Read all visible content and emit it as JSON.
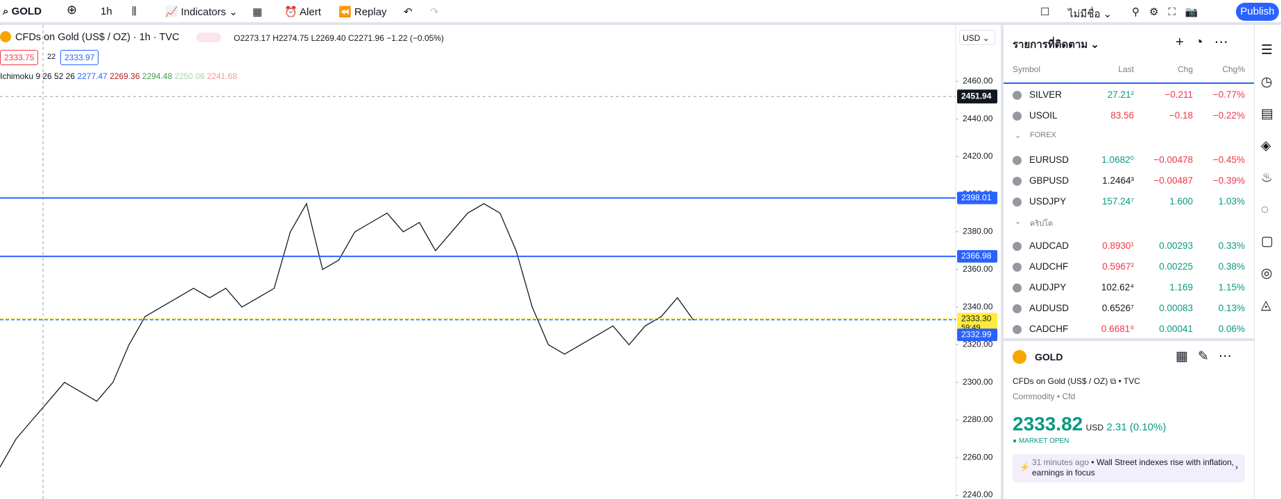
{
  "toolbar": {
    "symbol": "GOLD",
    "interval": "1h",
    "indicators": "Indicators",
    "alert": "Alert",
    "replay": "Replay",
    "layout_name": "ไม่มีชื่อ",
    "publish": "Publish"
  },
  "chart_header": {
    "title": "CFDs on Gold (US$ / OZ) · 1h · TVC",
    "open": "O2273.17",
    "high": "H2274.75",
    "low": "L2269.40",
    "close": "C2271.96",
    "change": "−1.22 (−0.05%)",
    "bid": "2333.75",
    "spread": "22",
    "ask": "2333.97",
    "currency": "USD"
  },
  "ichimoku": {
    "name": "Ichimoku 9 26 52 26",
    "values": [
      "2277.47",
      "2269.36",
      "2294.48",
      "2250.06",
      "2241.68"
    ]
  },
  "chart_data": {
    "type": "line",
    "color": "#131722",
    "values": [
      2255,
      2270,
      2280,
      2290,
      2300,
      2295,
      2290,
      2300,
      2320,
      2335,
      2340,
      2345,
      2350,
      2345,
      2350,
      2340,
      2345,
      2350,
      2380,
      2395,
      2360,
      2365,
      2380,
      2385,
      2390,
      2380,
      2385,
      2370,
      2380,
      2390,
      2395,
      2390,
      2370,
      2340,
      2320,
      2315,
      2320,
      2325,
      2330,
      2320,
      2330,
      2335,
      2345,
      2333
    ],
    "ylim": [
      2238,
      2490
    ],
    "yticks": [
      {
        "value": 2240,
        "label": "2240.00"
      },
      {
        "value": 2260,
        "label": "2260.00"
      },
      {
        "value": 2280,
        "label": "2280.00"
      },
      {
        "value": 2300,
        "label": "2300.00"
      },
      {
        "value": 2320,
        "label": "2320.00"
      },
      {
        "value": 2340,
        "label": "2340.00"
      },
      {
        "value": 2360,
        "label": "2360.00"
      },
      {
        "value": 2380,
        "label": "2380.00"
      },
      {
        "value": 2400,
        "label": "2400.00"
      },
      {
        "value": 2420,
        "label": "2420.00"
      },
      {
        "value": 2440,
        "label": "2440.00"
      },
      {
        "value": 2460,
        "label": "2460.00"
      }
    ],
    "price_lines": [
      2398.01,
      2366.98
    ],
    "last_price": {
      "value": 2333.3,
      "label": "2333.30"
    },
    "countdown": "59:49",
    "bid_line": 2332.99,
    "crosshair": 2451.94
  },
  "watchlist": {
    "title": "รายการที่ติดตาม",
    "columns": [
      "Symbol",
      "Last",
      "Chg",
      "Chg%"
    ],
    "groups": [
      {
        "rows": [
          {
            "symbol": "SILVER",
            "last": "27.21²",
            "chg": "−0.211",
            "chgp": "−0.77%",
            "last_color": "green",
            "chg_color": "red"
          },
          {
            "symbol": "USOIL",
            "last": "83.56",
            "chg": "−0.18",
            "chgp": "−0.22%",
            "last_color": "red",
            "chg_color": "red"
          }
        ]
      },
      {
        "name": "FOREX",
        "rows": [
          {
            "symbol": "EURUSD",
            "last": "1.0682⁰",
            "chg": "−0.00478",
            "chgp": "−0.45%",
            "last_color": "green",
            "chg_color": "red"
          },
          {
            "symbol": "GBPUSD",
            "last": "1.2464³",
            "chg": "−0.00487",
            "chgp": "−0.39%",
            "last_color": "black",
            "chg_color": "red"
          },
          {
            "symbol": "USDJPY",
            "last": "157.24⁷",
            "chg": "1.600",
            "chgp": "1.03%",
            "last_color": "green",
            "chg_color": "green"
          }
        ]
      },
      {
        "name": "คริปโต",
        "rows": [
          {
            "symbol": "AUDCAD",
            "last": "0.8930¹",
            "chg": "0.00293",
            "chgp": "0.33%",
            "last_color": "red",
            "chg_color": "green"
          },
          {
            "symbol": "AUDCHF",
            "last": "0.5967²",
            "chg": "0.00225",
            "chgp": "0.38%",
            "last_color": "red",
            "chg_color": "green"
          },
          {
            "symbol": "AUDJPY",
            "last": "102.62⁴",
            "chg": "1.169",
            "chgp": "1.15%",
            "last_color": "black",
            "chg_color": "green"
          },
          {
            "symbol": "AUDUSD",
            "last": "0.6526⁷",
            "chg": "0.00083",
            "chgp": "0.13%",
            "last_color": "black",
            "chg_color": "green"
          },
          {
            "symbol": "CADCHF",
            "last": "0.6681⁹",
            "chg": "0.00041",
            "chgp": "0.06%",
            "last_color": "red",
            "chg_color": "green"
          }
        ]
      }
    ]
  },
  "details": {
    "symbol": "GOLD",
    "name": "CFDs on Gold (US$ / OZ)",
    "exchange": "TVC",
    "type": "Commodity",
    "subtype": "Cfd",
    "price": "2333.82",
    "currency": "USD",
    "change": "2.31 (0.10%)",
    "status": "MARKET OPEN",
    "news_time": "31 minutes ago",
    "news": "Wall Street indexes rise with inflation, earnings in focus"
  }
}
